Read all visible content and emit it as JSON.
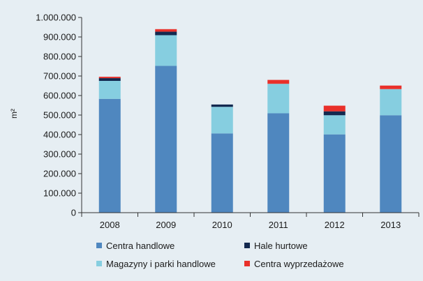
{
  "chart_data": {
    "type": "bar",
    "stacked": true,
    "categories": [
      "2008",
      "2009",
      "2010",
      "2011",
      "2012",
      "2013"
    ],
    "series": [
      {
        "name": "Centra handlowe",
        "color": "#4f87bf",
        "values": [
          583000,
          752000,
          406000,
          509000,
          401000,
          499000
        ]
      },
      {
        "name": "Magazyny i parki handlowe",
        "color": "#86cee0",
        "values": [
          92000,
          157000,
          136000,
          151000,
          98000,
          134000
        ]
      },
      {
        "name": "Hale hurtowe",
        "color": "#13294f",
        "values": [
          14000,
          18000,
          12000,
          0,
          20000,
          0
        ]
      },
      {
        "name": "Centra wyprzedażowe",
        "color": "#e9302a",
        "values": [
          7000,
          13000,
          0,
          20000,
          29000,
          18000
        ]
      }
    ],
    "ylabel": "m²",
    "ylim": [
      0,
      1000000
    ],
    "yticks": [
      {
        "value": 0,
        "label": "0"
      },
      {
        "value": 100000,
        "label": "100.000"
      },
      {
        "value": 200000,
        "label": "200.000"
      },
      {
        "value": 300000,
        "label": "300.000"
      },
      {
        "value": 400000,
        "label": "400.000"
      },
      {
        "value": 500000,
        "label": "500.000"
      },
      {
        "value": 600000,
        "label": "600.000"
      },
      {
        "value": 700000,
        "label": "700.000"
      },
      {
        "value": 800000,
        "label": "800.000"
      },
      {
        "value": 900000,
        "label": "900.000"
      },
      {
        "value": 1000000,
        "label": "1.000.000"
      }
    ],
    "grid": false,
    "legend": {
      "placement": "bottom",
      "order": [
        "Centra handlowe",
        "Hale hurtowe",
        "Magazyny i parki handlowe",
        "Centra wyprzedażowe"
      ]
    }
  }
}
